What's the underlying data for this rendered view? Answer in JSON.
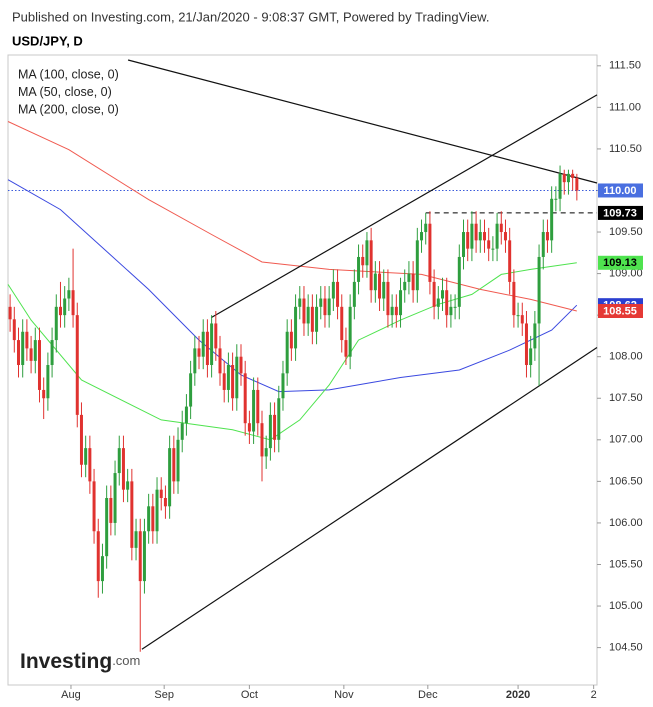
{
  "header": "Published on Investing.com, 21/Jan/2020 - 9:08:37 GMT, Powered by TradingView.",
  "logo": {
    "main": "Investing",
    "suffix": ".com"
  },
  "chart_data": {
    "type": "candlestick",
    "title": "USD/JPY, D",
    "up_color": "#2e9e3e",
    "down_color": "#e0322f",
    "xlim": [
      -0.5,
      139.8
    ],
    "ylim": [
      104.05,
      111.63
    ],
    "xticks": [
      {
        "value": 14.5,
        "label": "Aug"
      },
      {
        "value": 36.7,
        "label": "Sep"
      },
      {
        "value": 57,
        "label": "Oct"
      },
      {
        "value": 79.5,
        "label": "Nov"
      },
      {
        "value": 99.5,
        "label": "Dec"
      },
      {
        "value": 121,
        "label": "2020"
      },
      {
        "value": 139,
        "label": "2"
      }
    ],
    "yticks": [
      {
        "value": 104.5,
        "label": "104.50"
      },
      {
        "value": 105,
        "label": "105.00"
      },
      {
        "value": 105.5,
        "label": "105.50"
      },
      {
        "value": 106,
        "label": "106.00"
      },
      {
        "value": 106.5,
        "label": "106.50"
      },
      {
        "value": 107,
        "label": "107.00"
      },
      {
        "value": 107.5,
        "label": "107.50"
      },
      {
        "value": 108,
        "label": "108.00"
      },
      {
        "value": 108.5,
        "label": "108.50"
      },
      {
        "value": 109,
        "label": "109.00"
      },
      {
        "value": 109.5,
        "label": "109.50"
      },
      {
        "value": 110,
        "label": "110.00"
      },
      {
        "value": 110.5,
        "label": "110.50"
      },
      {
        "value": 111,
        "label": "111.00"
      },
      {
        "value": 111.5,
        "label": "111.50"
      }
    ],
    "x": [
      0,
      1,
      2,
      3,
      4,
      5,
      6,
      7,
      8,
      9,
      10,
      11,
      12,
      13,
      14,
      15,
      16,
      17,
      18,
      19,
      20,
      21,
      22,
      23,
      24,
      25,
      26,
      27,
      28,
      29,
      30,
      31,
      32,
      33,
      34,
      35,
      36,
      37,
      38,
      39,
      40,
      41,
      42,
      43,
      44,
      45,
      46,
      47,
      48,
      49,
      50,
      51,
      52,
      53,
      54,
      55,
      56,
      57,
      58,
      59,
      60,
      61,
      62,
      63,
      64,
      65,
      66,
      67,
      68,
      69,
      70,
      71,
      72,
      73,
      74,
      75,
      76,
      77,
      78,
      79,
      80,
      81,
      82,
      83,
      84,
      85,
      86,
      87,
      88,
      89,
      90,
      91,
      92,
      93,
      94,
      95,
      96,
      97,
      98,
      99,
      100,
      101,
      102,
      103,
      104,
      105,
      106,
      107,
      108,
      109,
      110,
      111,
      112,
      113,
      114,
      115,
      116,
      117,
      118,
      119,
      120,
      121,
      122,
      123,
      124,
      125,
      126,
      127,
      128,
      129,
      130,
      131,
      132,
      133,
      134,
      135
    ],
    "ohlc": [
      [
        108.6,
        108.75,
        108.3,
        108.45
      ],
      [
        108.45,
        108.6,
        108.05,
        108.2
      ],
      [
        108.2,
        108.35,
        107.75,
        107.9
      ],
      [
        107.9,
        108.45,
        107.75,
        108.3
      ],
      [
        108.3,
        108.45,
        107.95,
        108.1
      ],
      [
        108.1,
        108.25,
        107.8,
        107.95
      ],
      [
        107.95,
        108.35,
        107.8,
        108.2
      ],
      [
        108.2,
        108.35,
        107.45,
        107.6
      ],
      [
        107.6,
        107.75,
        107.25,
        107.5
      ],
      [
        107.5,
        108.05,
        107.35,
        107.9
      ],
      [
        107.9,
        108.35,
        107.75,
        108.2
      ],
      [
        108.2,
        108.75,
        108.05,
        108.6
      ],
      [
        108.6,
        108.9,
        108.35,
        108.5
      ],
      [
        108.5,
        108.85,
        108.35,
        108.7
      ],
      [
        108.7,
        108.95,
        108.55,
        108.8
      ],
      [
        108.8,
        109.3,
        108.35,
        108.5
      ],
      [
        108.5,
        108.65,
        107.15,
        107.3
      ],
      [
        107.3,
        107.45,
        106.55,
        106.7
      ],
      [
        106.7,
        107.05,
        106.55,
        106.9
      ],
      [
        106.9,
        107.05,
        106.35,
        106.5
      ],
      [
        106.5,
        106.65,
        105.75,
        105.9
      ],
      [
        105.9,
        106.05,
        105.1,
        105.3
      ],
      [
        105.3,
        105.75,
        105.15,
        105.6
      ],
      [
        105.6,
        106.45,
        105.45,
        106.3
      ],
      [
        106.3,
        106.45,
        105.85,
        106.0
      ],
      [
        106.0,
        106.75,
        105.85,
        106.6
      ],
      [
        106.6,
        107.05,
        106.45,
        106.9
      ],
      [
        106.9,
        107.05,
        106.25,
        106.4
      ],
      [
        106.4,
        106.65,
        106.25,
        106.5
      ],
      [
        106.5,
        106.65,
        105.55,
        105.7
      ],
      [
        105.7,
        106.05,
        105.55,
        105.9
      ],
      [
        105.9,
        106.05,
        104.45,
        105.3
      ],
      [
        105.3,
        106.05,
        105.15,
        105.9
      ],
      [
        105.9,
        106.35,
        105.75,
        106.2
      ],
      [
        106.2,
        106.35,
        105.75,
        105.9
      ],
      [
        105.9,
        106.55,
        105.75,
        106.4
      ],
      [
        106.4,
        106.55,
        106.15,
        106.3
      ],
      [
        106.3,
        106.45,
        106.05,
        106.2
      ],
      [
        106.2,
        107.05,
        106.05,
        106.9
      ],
      [
        106.9,
        107.05,
        106.35,
        106.5
      ],
      [
        106.5,
        107.15,
        106.35,
        107.0
      ],
      [
        107.0,
        107.35,
        106.85,
        107.2
      ],
      [
        107.2,
        107.55,
        107.05,
        107.4
      ],
      [
        107.4,
        107.95,
        107.25,
        107.8
      ],
      [
        107.8,
        108.25,
        107.65,
        108.1
      ],
      [
        108.1,
        108.25,
        107.85,
        108.0
      ],
      [
        108.0,
        108.45,
        107.85,
        108.3
      ],
      [
        108.3,
        108.45,
        107.75,
        107.9
      ],
      [
        107.9,
        108.5,
        107.75,
        108.4
      ],
      [
        108.4,
        108.55,
        107.95,
        108.1
      ],
      [
        108.1,
        108.25,
        107.65,
        107.8
      ],
      [
        107.8,
        107.95,
        107.45,
        107.6
      ],
      [
        107.6,
        108.05,
        107.45,
        107.9
      ],
      [
        107.9,
        108.05,
        107.35,
        107.5
      ],
      [
        107.5,
        108.15,
        107.35,
        108.0
      ],
      [
        108.0,
        108.15,
        107.65,
        107.8
      ],
      [
        107.8,
        107.95,
        107.05,
        107.2
      ],
      [
        107.2,
        107.35,
        106.95,
        107.1
      ],
      [
        107.1,
        107.75,
        106.95,
        107.6
      ],
      [
        107.6,
        107.75,
        107.05,
        107.2
      ],
      [
        107.2,
        107.35,
        106.5,
        106.8
      ],
      [
        106.8,
        107.05,
        106.65,
        106.9
      ],
      [
        106.9,
        107.45,
        106.75,
        107.3
      ],
      [
        107.3,
        107.45,
        106.85,
        107.0
      ],
      [
        107.0,
        107.65,
        106.85,
        107.5
      ],
      [
        107.5,
        107.95,
        107.35,
        107.8
      ],
      [
        107.8,
        108.45,
        107.65,
        108.3
      ],
      [
        108.3,
        108.45,
        107.95,
        108.1
      ],
      [
        108.1,
        108.75,
        107.95,
        108.6
      ],
      [
        108.6,
        108.85,
        108.45,
        108.7
      ],
      [
        108.7,
        108.85,
        108.25,
        108.4
      ],
      [
        108.4,
        108.75,
        108.25,
        108.6
      ],
      [
        108.6,
        108.75,
        108.15,
        108.3
      ],
      [
        108.3,
        108.75,
        108.15,
        108.6
      ],
      [
        108.6,
        108.85,
        108.45,
        108.7
      ],
      [
        108.7,
        108.85,
        108.35,
        108.5
      ],
      [
        108.5,
        108.85,
        108.35,
        108.7
      ],
      [
        108.7,
        109.05,
        108.55,
        108.9
      ],
      [
        108.9,
        109.05,
        108.45,
        108.6
      ],
      [
        108.6,
        108.75,
        108.05,
        108.2
      ],
      [
        108.2,
        108.35,
        107.9,
        108.0
      ],
      [
        108.0,
        108.75,
        107.85,
        108.6
      ],
      [
        108.6,
        109.05,
        108.45,
        108.9
      ],
      [
        108.9,
        109.35,
        108.75,
        109.2
      ],
      [
        109.2,
        109.35,
        108.95,
        109.1
      ],
      [
        109.1,
        109.5,
        108.95,
        109.4
      ],
      [
        109.4,
        109.55,
        108.65,
        108.8
      ],
      [
        108.8,
        109.15,
        108.65,
        109.0
      ],
      [
        109.0,
        109.15,
        108.55,
        108.7
      ],
      [
        108.7,
        109.05,
        108.55,
        108.9
      ],
      [
        108.9,
        109.05,
        108.35,
        108.5
      ],
      [
        108.5,
        108.75,
        108.35,
        108.6
      ],
      [
        108.6,
        108.75,
        108.35,
        108.5
      ],
      [
        108.5,
        108.95,
        108.35,
        108.8
      ],
      [
        108.8,
        109.05,
        108.65,
        108.9
      ],
      [
        108.9,
        109.15,
        108.75,
        109.0
      ],
      [
        109.0,
        109.15,
        108.65,
        108.8
      ],
      [
        108.8,
        109.55,
        108.65,
        109.4
      ],
      [
        109.4,
        109.65,
        109.25,
        109.5
      ],
      [
        109.5,
        109.73,
        109.35,
        109.6
      ],
      [
        109.6,
        109.75,
        108.75,
        108.9
      ],
      [
        108.9,
        109.05,
        108.45,
        108.6
      ],
      [
        108.6,
        108.85,
        108.45,
        108.7
      ],
      [
        108.7,
        108.95,
        108.55,
        108.8
      ],
      [
        108.8,
        108.95,
        108.35,
        108.5
      ],
      [
        108.5,
        108.75,
        108.35,
        108.6
      ],
      [
        108.6,
        108.75,
        108.45,
        108.6
      ],
      [
        108.6,
        109.35,
        108.45,
        109.2
      ],
      [
        109.2,
        109.65,
        109.05,
        109.5
      ],
      [
        109.5,
        109.65,
        109.15,
        109.3
      ],
      [
        109.3,
        109.75,
        109.15,
        109.6
      ],
      [
        109.6,
        109.75,
        109.25,
        109.4
      ],
      [
        109.4,
        109.65,
        109.25,
        109.5
      ],
      [
        109.5,
        109.65,
        109.25,
        109.4
      ],
      [
        109.4,
        109.55,
        109.15,
        109.3
      ],
      [
        109.3,
        109.45,
        109.15,
        109.3
      ],
      [
        109.3,
        109.73,
        109.15,
        109.6
      ],
      [
        109.6,
        109.75,
        109.35,
        109.5
      ],
      [
        109.5,
        109.65,
        109.25,
        109.4
      ],
      [
        109.4,
        109.55,
        108.75,
        108.9
      ],
      [
        108.9,
        109.05,
        108.35,
        108.5
      ],
      [
        108.5,
        108.65,
        108.35,
        108.5
      ],
      [
        108.5,
        108.65,
        108.25,
        108.4
      ],
      [
        108.4,
        108.55,
        107.75,
        107.9
      ],
      [
        107.9,
        108.25,
        107.75,
        108.1
      ],
      [
        108.1,
        108.55,
        107.95,
        108.4
      ],
      [
        108.4,
        109.35,
        107.65,
        109.2
      ],
      [
        109.2,
        109.65,
        109.05,
        109.5
      ],
      [
        109.5,
        109.65,
        109.25,
        109.4
      ],
      [
        109.4,
        110.05,
        109.25,
        109.9
      ],
      [
        109.9,
        110.05,
        109.75,
        109.9
      ],
      [
        109.9,
        110.3,
        109.75,
        110.2
      ],
      [
        110.2,
        110.25,
        109.95,
        110.1
      ],
      [
        110.1,
        110.25,
        109.95,
        110.2
      ],
      [
        110.2,
        110.25,
        110.0,
        110.15
      ],
      [
        110.15,
        110.2,
        109.88,
        110.0
      ]
    ],
    "series": [
      {
        "name": "MA (100, close, 0)",
        "color": "#3b49e0",
        "x": [
          -0.5,
          12,
          33,
          45,
          55,
          64,
          76,
          93,
          107,
          119,
          129,
          135
        ],
        "values": [
          110.13,
          109.77,
          108.81,
          108.2,
          107.78,
          107.58,
          107.6,
          107.75,
          107.84,
          108.08,
          108.32,
          108.62
        ]
      },
      {
        "name": "MA (50, close, 0)",
        "color": "#4fe34f",
        "x": [
          -0.5,
          5,
          17,
          36,
          53,
          62,
          69,
          76,
          83,
          93,
          102,
          110,
          117,
          124,
          135
        ],
        "values": [
          108.87,
          108.44,
          107.72,
          107.24,
          107.12,
          107.0,
          107.24,
          107.66,
          108.2,
          108.44,
          108.63,
          108.75,
          108.99,
          109.05,
          109.13
        ]
      },
      {
        "name": "MA (200, close, 0)",
        "color": "#f05a50",
        "x": [
          -0.5,
          14,
          33,
          48,
          60,
          76,
          98,
          112,
          124,
          135
        ],
        "values": [
          110.83,
          110.49,
          109.89,
          109.47,
          109.14,
          109.05,
          108.99,
          108.81,
          108.69,
          108.55
        ]
      }
    ],
    "trendlines": [
      {
        "x": [
          28.1,
          139.8
        ],
        "values": [
          111.57,
          110.09
        ]
      },
      {
        "x": [
          47.9,
          139.8
        ],
        "values": [
          108.47,
          111.15
        ]
      },
      {
        "x": [
          31.4,
          139.8
        ],
        "values": [
          104.48,
          108.11
        ]
      }
    ],
    "levels": [
      {
        "x": [
          -0.5,
          139.8
        ],
        "value": 110.0,
        "style": "dotted",
        "color": "#3b5bdb"
      },
      {
        "x": [
          99,
          139.8
        ],
        "value": 109.73,
        "style": "dashed",
        "color": "#000000"
      }
    ],
    "price_labels": [
      {
        "value": 110.0,
        "label": "110.00",
        "color": "#4a6fe0",
        "text_color": "#ffffff"
      },
      {
        "value": 109.73,
        "label": "109.73",
        "color": "#000000",
        "text_color": "#ffffff"
      },
      {
        "value": 109.13,
        "label": "109.13",
        "color": "#4fe34f",
        "text_color": "#000000"
      },
      {
        "value": 108.62,
        "label": "108.62",
        "color": "#2b3fd0",
        "text_color": "#ffffff"
      },
      {
        "value": 108.55,
        "label": "108.55",
        "color": "#e53935",
        "text_color": "#ffffff"
      }
    ]
  }
}
